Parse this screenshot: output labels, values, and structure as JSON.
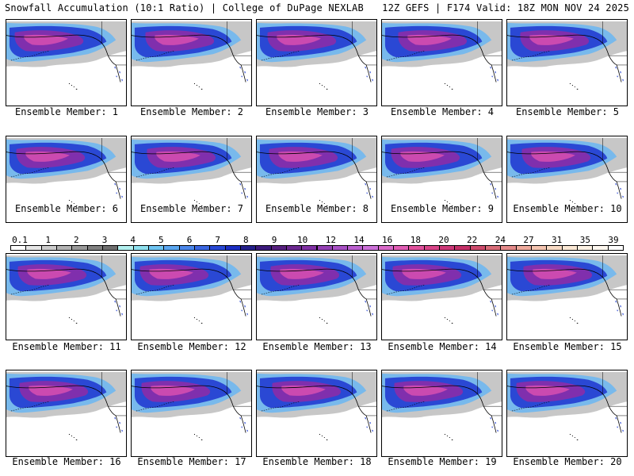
{
  "header": {
    "left": "Snowfall Accumulation (10:1 Ratio) | College of DuPage NEXLAB",
    "right": "12Z GEFS | F174 Valid: 18Z MON NOV 24 2025"
  },
  "members": [
    {
      "label": "Ensemble Member: 1"
    },
    {
      "label": "Ensemble Member: 2"
    },
    {
      "label": "Ensemble Member: 3"
    },
    {
      "label": "Ensemble Member: 4"
    },
    {
      "label": "Ensemble Member: 5"
    },
    {
      "label": "Ensemble Member: 6"
    },
    {
      "label": "Ensemble Member: 7"
    },
    {
      "label": "Ensemble Member: 8"
    },
    {
      "label": "Ensemble Member: 9"
    },
    {
      "label": "Ensemble Member: 10"
    },
    {
      "label": "Ensemble Member: 11"
    },
    {
      "label": "Ensemble Member: 12"
    },
    {
      "label": "Ensemble Member: 13"
    },
    {
      "label": "Ensemble Member: 14"
    },
    {
      "label": "Ensemble Member: 15"
    },
    {
      "label": "Ensemble Member: 16"
    },
    {
      "label": "Ensemble Member: 17"
    },
    {
      "label": "Ensemble Member: 18"
    },
    {
      "label": "Ensemble Member: 19"
    },
    {
      "label": "Ensemble Member: 20"
    }
  ],
  "legend": {
    "labels": [
      "0.1",
      "1",
      "2",
      "3",
      "4",
      "5",
      "6",
      "7",
      "8",
      "9",
      "10",
      "12",
      "14",
      "16",
      "18",
      "20",
      "22",
      "24",
      "27",
      "31",
      "35",
      "39"
    ],
    "colors": [
      "#ffffff",
      "#e6e6e6",
      "#cccccc",
      "#b3b3b3",
      "#999999",
      "#808080",
      "#6e6e6e",
      "#b2f0ef",
      "#8ee0ee",
      "#6ec4f2",
      "#5aa6f0",
      "#4a86ea",
      "#3a66e0",
      "#2848d4",
      "#1c2ec2",
      "#24208a",
      "#3c1a7c",
      "#56207e",
      "#6c2890",
      "#8030a4",
      "#9440b4",
      "#a850c4",
      "#bc60d0",
      "#cc70d8",
      "#d868c8",
      "#e05cb4",
      "#e0509c",
      "#d84488",
      "#cc3878",
      "#c43068",
      "#cc4a6c",
      "#d86c78",
      "#e48a8a",
      "#eeaa9c",
      "#f4c4b0",
      "#f8dac4",
      "#fbe8d4",
      "#fdf2e4",
      "#fff8f0",
      "#ffffff"
    ]
  }
}
